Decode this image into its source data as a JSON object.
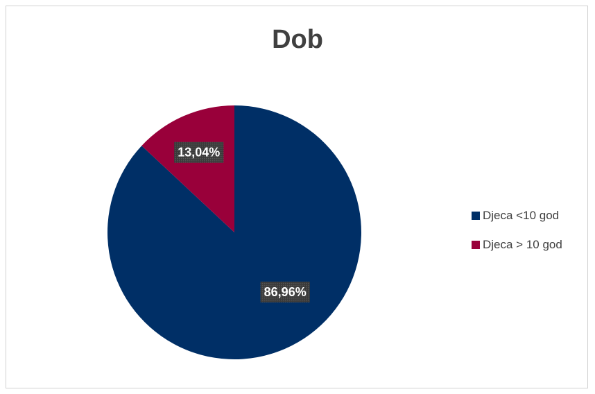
{
  "chart_data": {
    "type": "pie",
    "title": "Dob",
    "categories": [
      "Djeca <10 god",
      "Djeca > 10 god"
    ],
    "values": [
      86.96,
      13.04
    ],
    "data_labels": [
      "86,96%",
      "13,04%"
    ],
    "colors": [
      "#002F66",
      "#99003A"
    ],
    "legend_position": "right"
  }
}
